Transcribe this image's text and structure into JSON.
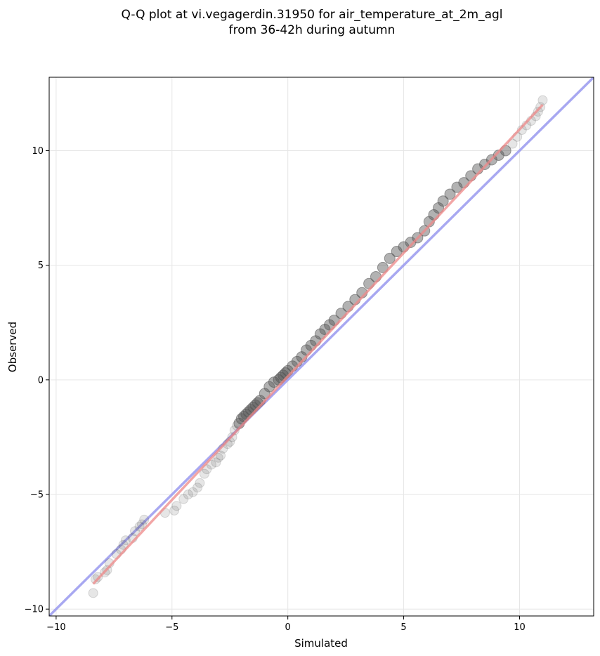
{
  "chart_data": {
    "type": "scatter",
    "title_line1": "Q-Q plot at vi.vegagerdin.31950 for air_temperature_at_2m_agl",
    "title_line2": "from 36-42h during autumn",
    "xlabel": "Simulated",
    "ylabel": "Observed",
    "xlim": [
      -10.3,
      13.2
    ],
    "ylim": [
      -10.3,
      13.2
    ],
    "xticks": [
      -10,
      -5,
      0,
      5,
      10
    ],
    "yticks": [
      -10,
      -5,
      0,
      5,
      10
    ],
    "xtick_labels": [
      "−10",
      "−5",
      "0",
      "5",
      "10"
    ],
    "ytick_labels": [
      "−10",
      "−5",
      "0",
      "5",
      "10"
    ],
    "grid": true,
    "reference_line": {
      "color": "#9999ee",
      "x": [
        -10.3,
        13.2
      ],
      "y": [
        -10.3,
        13.2
      ]
    },
    "fit_line": {
      "color": "#ee8888",
      "x": [
        -8.4,
        11.0
      ],
      "y": [
        -8.9,
        12.0
      ]
    },
    "series": [
      {
        "color": "#555555",
        "x": [
          -8.4,
          -8.3,
          -8.2,
          -7.9,
          -7.8,
          -7.7,
          -7.4,
          -7.2,
          -7.1,
          -7.0,
          -6.7,
          -6.6,
          -6.4,
          -6.3,
          -6.2,
          -5.3,
          -4.9,
          -4.8,
          -4.5,
          -4.3,
          -4.1,
          -3.9,
          -3.8,
          -3.6,
          -3.5,
          -3.3,
          -3.1,
          -3.0,
          -2.9,
          -2.8,
          -2.6,
          -2.5,
          -2.4,
          -2.3,
          -2.2,
          -2.1,
          -2.0,
          -1.9,
          -1.8,
          -1.7,
          -1.6,
          -1.5,
          -1.4,
          -1.3,
          -1.2,
          -1.0,
          -0.8,
          -0.6,
          -0.4,
          -0.3,
          -0.2,
          -0.1,
          0.0,
          0.2,
          0.4,
          0.6,
          0.8,
          1.0,
          1.2,
          1.4,
          1.6,
          1.8,
          2.0,
          2.3,
          2.6,
          2.9,
          3.2,
          3.5,
          3.8,
          4.1,
          4.4,
          4.7,
          5.0,
          5.3,
          5.6,
          5.9,
          6.1,
          6.3,
          6.5,
          6.7,
          7.0,
          7.3,
          7.6,
          7.9,
          8.2,
          8.5,
          8.8,
          9.1,
          9.4,
          9.7,
          9.9,
          10.1,
          10.3,
          10.5,
          10.7,
          10.8,
          10.9,
          11.0
        ],
        "y": [
          -9.3,
          -8.7,
          -8.6,
          -8.4,
          -8.3,
          -8.0,
          -7.6,
          -7.4,
          -7.2,
          -7.0,
          -6.9,
          -6.6,
          -6.4,
          -6.3,
          -6.1,
          -5.8,
          -5.7,
          -5.5,
          -5.2,
          -5.0,
          -4.9,
          -4.7,
          -4.5,
          -4.1,
          -3.9,
          -3.7,
          -3.6,
          -3.4,
          -3.3,
          -3.0,
          -2.8,
          -2.7,
          -2.5,
          -2.2,
          -2.0,
          -1.9,
          -1.7,
          -1.6,
          -1.5,
          -1.4,
          -1.3,
          -1.2,
          -1.1,
          -1.0,
          -0.9,
          -0.6,
          -0.3,
          -0.1,
          0.0,
          0.1,
          0.2,
          0.3,
          0.4,
          0.6,
          0.8,
          1.0,
          1.3,
          1.5,
          1.7,
          2.0,
          2.2,
          2.4,
          2.6,
          2.9,
          3.2,
          3.5,
          3.8,
          4.2,
          4.5,
          4.9,
          5.3,
          5.6,
          5.8,
          6.0,
          6.2,
          6.5,
          6.9,
          7.2,
          7.5,
          7.8,
          8.1,
          8.4,
          8.6,
          8.9,
          9.2,
          9.4,
          9.6,
          9.8,
          10.0,
          10.3,
          10.6,
          10.9,
          11.1,
          11.3,
          11.5,
          11.7,
          11.9,
          12.2
        ]
      }
    ]
  }
}
